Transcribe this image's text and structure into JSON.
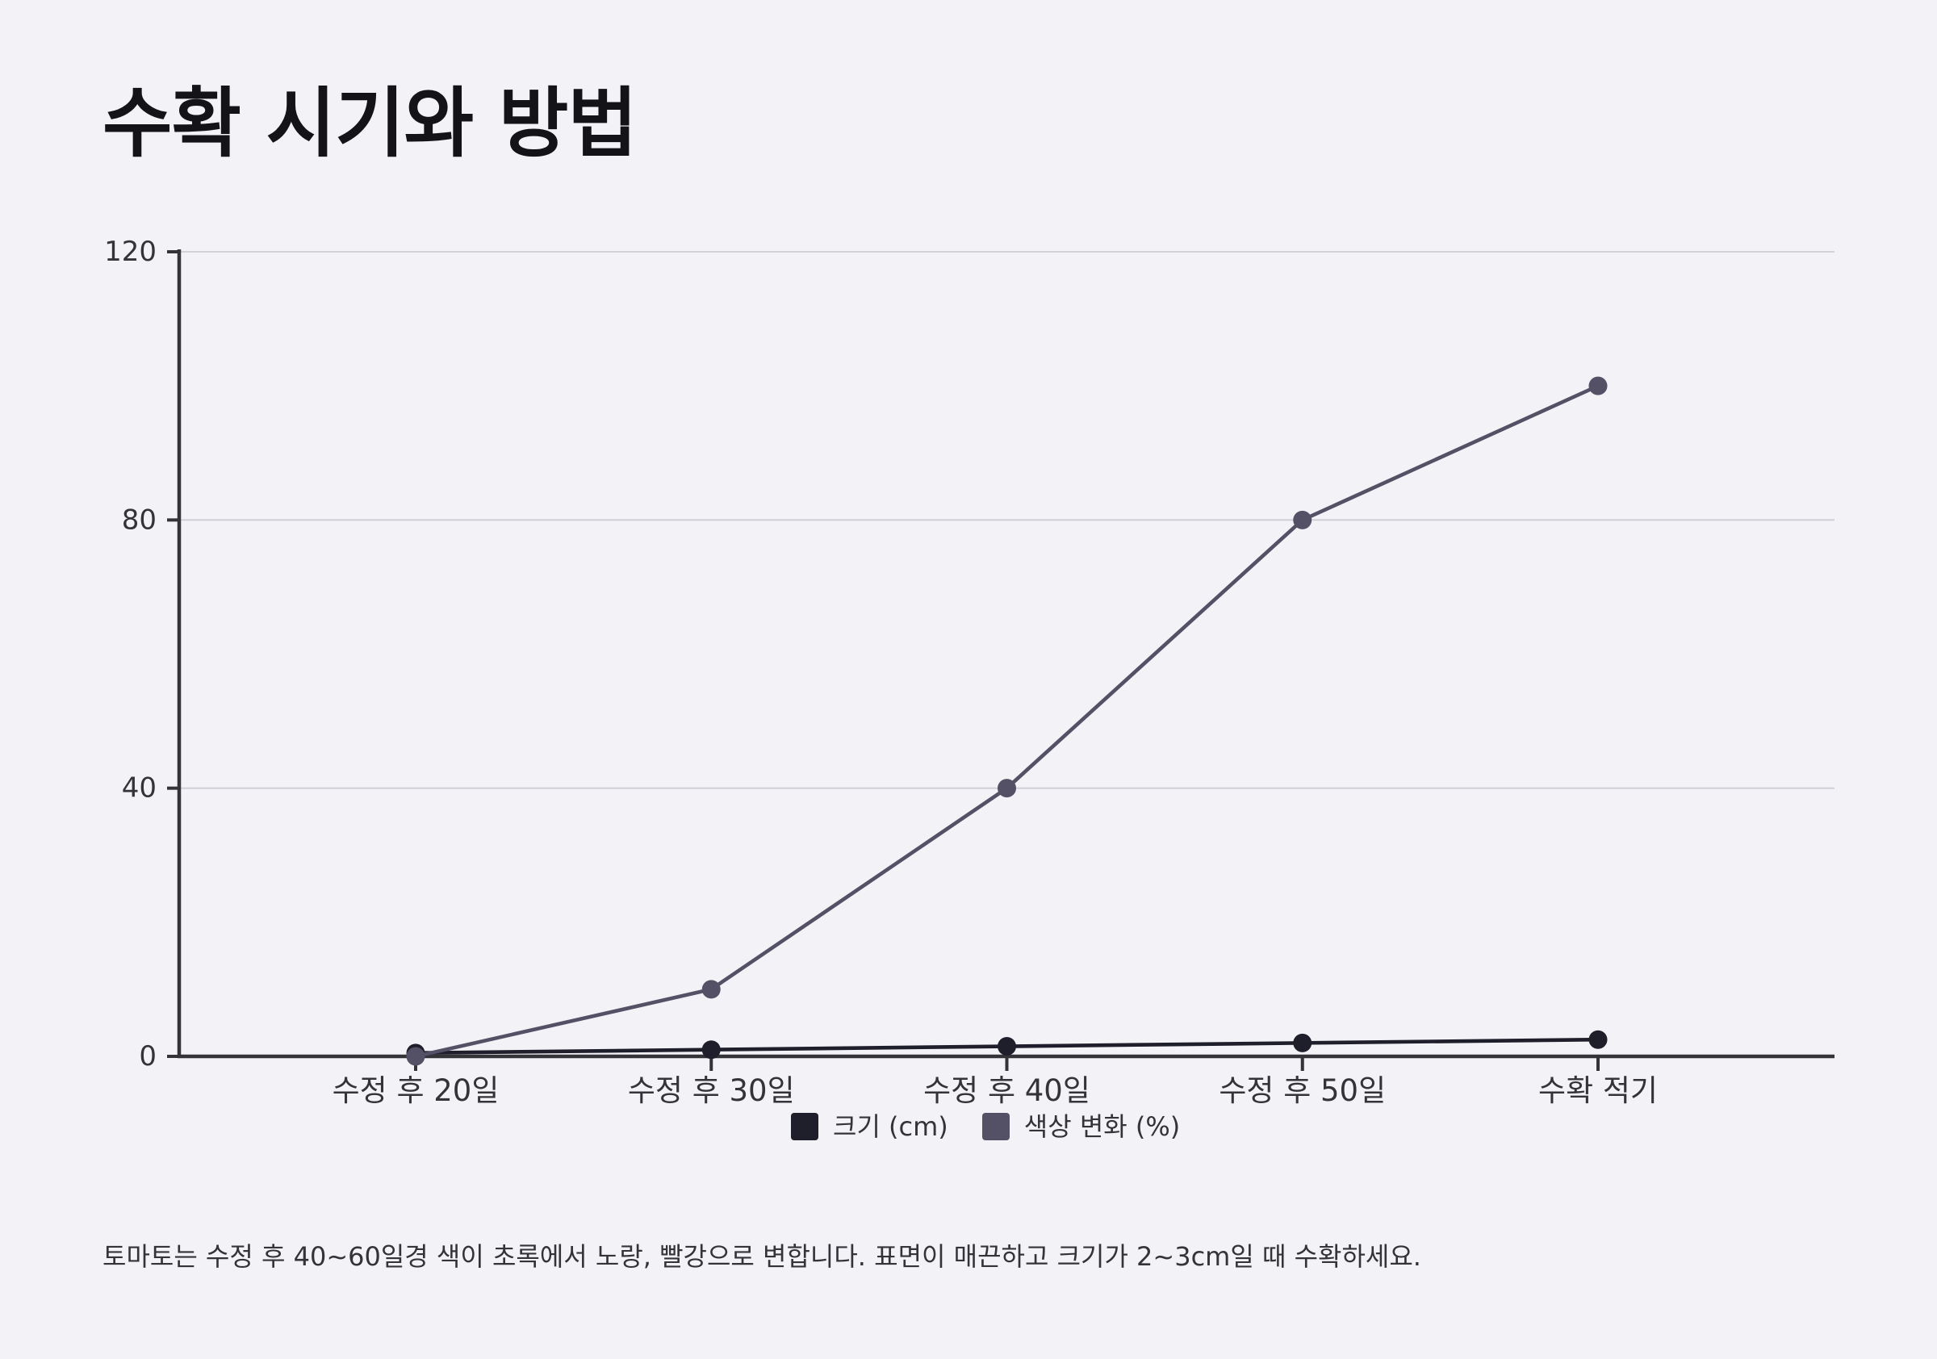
{
  "page": {
    "title": "수확 시기와 방법",
    "note": "토마토는 수정 후 40~60일경 색이 초록에서 노랑, 빨강으로 변합니다. 표면이 매끈하고 크기가 2~3cm일 때 수확하세요."
  },
  "colors": {
    "background": "#f3f2f7",
    "axis": "#333338",
    "grid": "#cfcdd4"
  },
  "chart_data": {
    "type": "line",
    "categories": [
      "수정 후 20일",
      "수정 후 30일",
      "수정 후 40일",
      "수정 후 50일",
      "수확 적기"
    ],
    "series": [
      {
        "name": "크기 (cm)",
        "values": [
          0.5,
          1,
          1.5,
          2,
          2.5
        ],
        "color": "#1f1e2b"
      },
      {
        "name": "색상 변화 (%)",
        "values": [
          0,
          10,
          40,
          80,
          100
        ],
        "color": "#545066"
      }
    ],
    "ylim": [
      0,
      120
    ],
    "yticks": [
      0,
      40,
      80,
      120
    ],
    "grid": true,
    "legend": "bottom-center"
  }
}
